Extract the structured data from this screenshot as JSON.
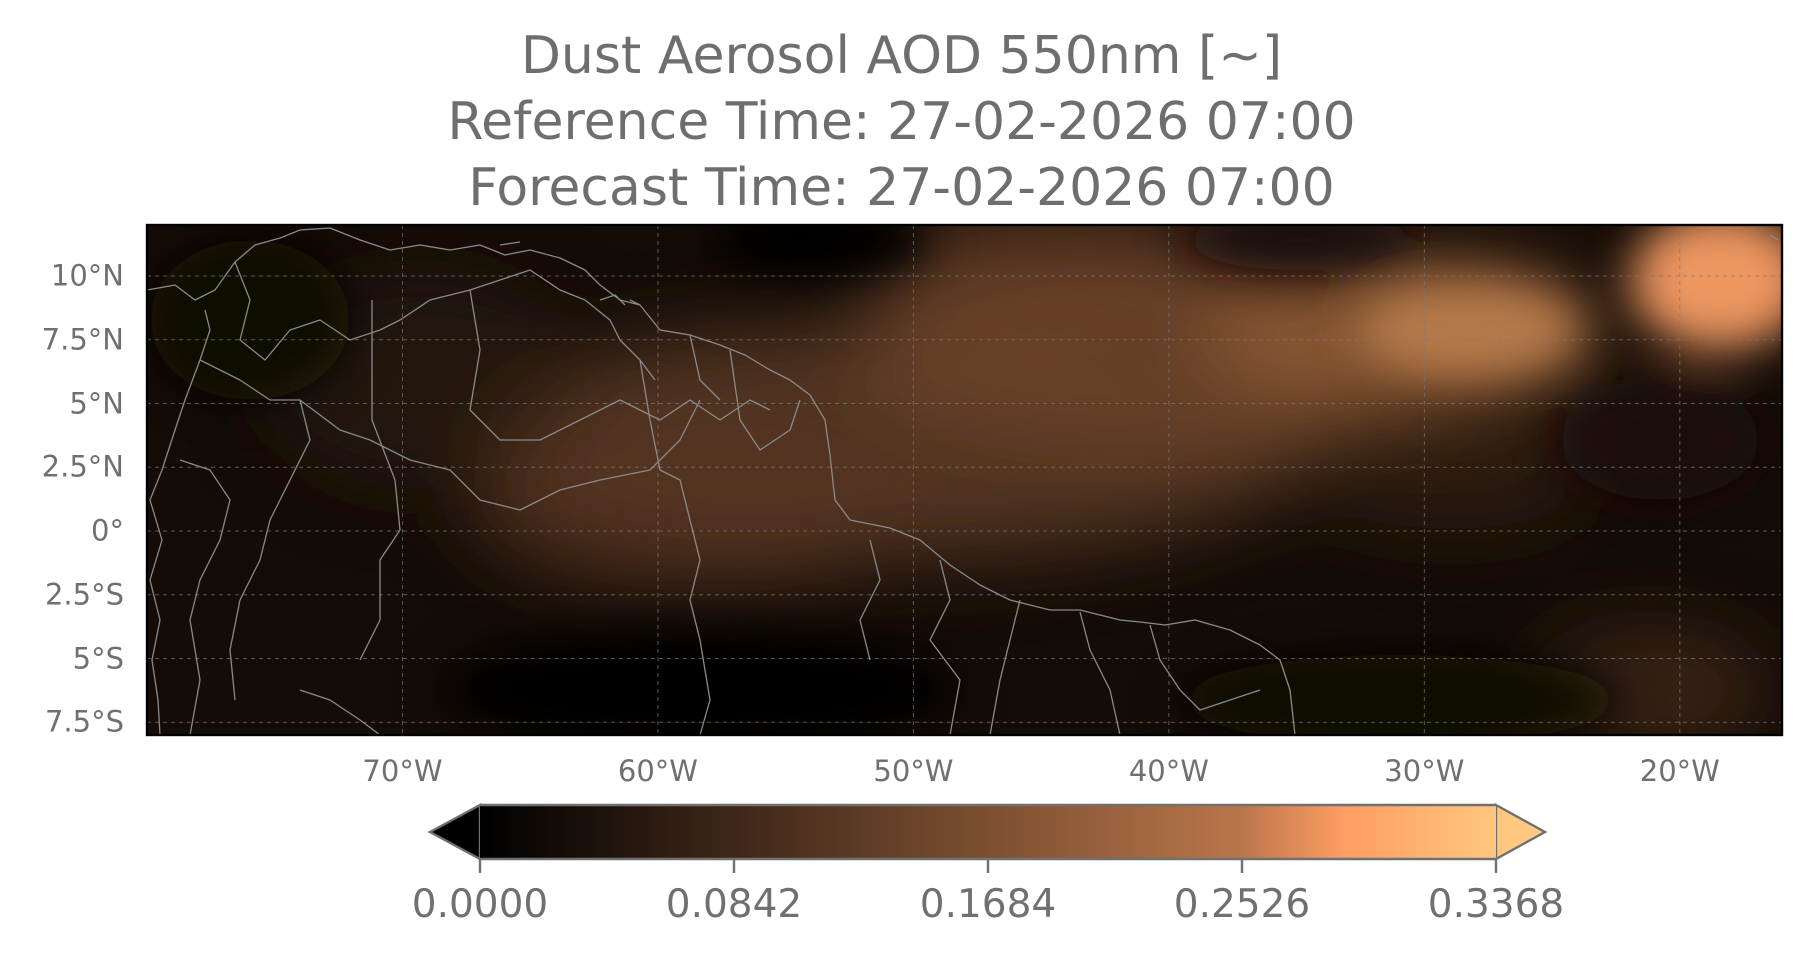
{
  "title": {
    "line1": "Dust Aerosol AOD 550nm [~]",
    "line2": "Reference Time: 27-02-2026 07:00",
    "line3": "Forecast Time: 27-02-2026 07:00"
  },
  "map": {
    "extent": {
      "lon_min": -80,
      "lon_max": -16,
      "lat_min": -8,
      "lat_max": 12
    },
    "lat_ticks": [
      {
        "value": 10,
        "label": "10°N"
      },
      {
        "value": 7.5,
        "label": "7.5°N"
      },
      {
        "value": 5,
        "label": "5°N"
      },
      {
        "value": 2.5,
        "label": "2.5°N"
      },
      {
        "value": 0,
        "label": "0°"
      },
      {
        "value": -2.5,
        "label": "2.5°S"
      },
      {
        "value": -5,
        "label": "5°S"
      },
      {
        "value": -7.5,
        "label": "7.5°S"
      }
    ],
    "lon_ticks": [
      {
        "value": -70,
        "label": "70°W"
      },
      {
        "value": -60,
        "label": "60°W"
      },
      {
        "value": -50,
        "label": "50°W"
      },
      {
        "value": -40,
        "label": "40°W"
      },
      {
        "value": -30,
        "label": "30°W"
      },
      {
        "value": -20,
        "label": "20°W"
      }
    ],
    "gridlines": true,
    "colormap": "copper"
  },
  "colorbar": {
    "min": 0,
    "max": 0.3368,
    "extend": "both",
    "ticks": [
      "0.0000",
      "0.0842",
      "0.1684",
      "0.2526",
      "0.3368"
    ]
  }
}
